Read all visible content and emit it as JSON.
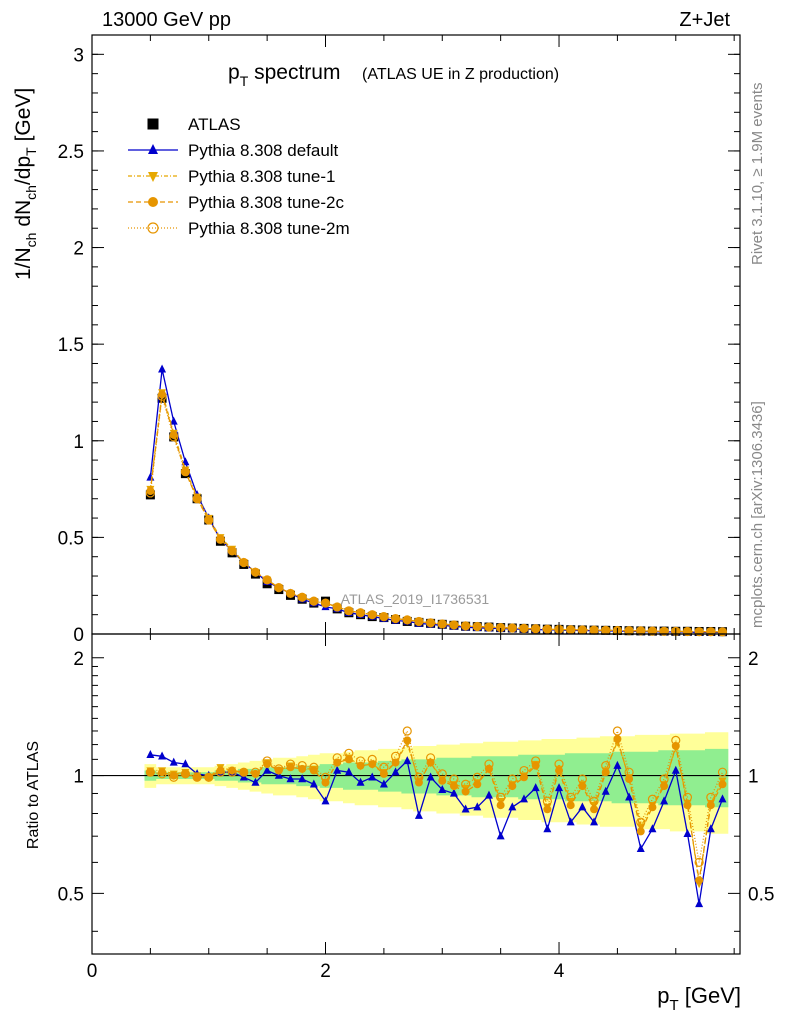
{
  "header": {
    "energy_label": "13000 GeV pp",
    "process_label": "Z+Jet"
  },
  "side_labels": {
    "rivet": "Rivet 3.1.10, ≥ 1.9M events",
    "source": "mcplots.cern.ch [arXiv:1306.3436]"
  },
  "chart_data": [
    {
      "type": "scatter",
      "title_main": "p",
      "title_sub": "T",
      "title_rest": " spectrum",
      "title_note": "(ATLAS UE in Z production)",
      "analysis_id": "ATLAS_2019_I1736531",
      "ylabel": "1/N_ch dN_ch/dp_T [GeV]",
      "ylabel_parts": {
        "a": "1/N",
        "a_sub": "ch",
        "b": " dN",
        "b_sub": "ch",
        "c": "/dp",
        "c_sub": "T",
        "d": " [GeV]"
      },
      "xlim": [
        0,
        5.55
      ],
      "ylim": [
        0,
        3.1
      ],
      "yticks": [
        0,
        0.5,
        1,
        1.5,
        2,
        2.5,
        3
      ],
      "ytick_labels": [
        "0",
        "0.5",
        "1",
        "1.5",
        "2",
        "2.5",
        "3"
      ],
      "x": [
        0.5,
        0.6,
        0.7,
        0.8,
        0.9,
        1.0,
        1.1,
        1.2,
        1.3,
        1.4,
        1.5,
        1.6,
        1.7,
        1.8,
        1.9,
        2.0,
        2.1,
        2.2,
        2.3,
        2.4,
        2.5,
        2.6,
        2.7,
        2.8,
        2.9,
        3.0,
        3.1,
        3.2,
        3.3,
        3.4,
        3.5,
        3.6,
        3.7,
        3.8,
        3.9,
        4.0,
        4.1,
        4.2,
        4.3,
        4.4,
        4.5,
        4.6,
        4.7,
        4.8,
        4.9,
        5.0,
        5.1,
        5.2,
        5.3,
        5.4
      ],
      "series": [
        {
          "name": "ATLAS",
          "marker": "square",
          "color": "#000000",
          "dash": "none",
          "values": [
            0.72,
            1.22,
            1.02,
            0.83,
            0.7,
            0.59,
            0.48,
            0.42,
            0.36,
            0.31,
            0.26,
            0.23,
            0.2,
            0.18,
            0.16,
            0.17,
            0.13,
            0.11,
            0.1,
            0.09,
            0.085,
            0.075,
            0.065,
            0.06,
            0.055,
            0.05,
            0.045,
            0.04,
            0.038,
            0.036,
            0.033,
            0.031,
            0.029,
            0.027,
            0.025,
            0.024,
            0.022,
            0.021,
            0.02,
            0.019,
            0.018,
            0.017,
            0.016,
            0.015,
            0.015,
            0.014,
            0.014,
            0.013,
            0.013,
            0.012
          ]
        },
        {
          "name": "Pythia 8.308 default",
          "marker": "triangle-up",
          "color": "#0000cc",
          "dash": "none",
          "values": [
            0.81,
            1.37,
            1.1,
            0.89,
            0.72,
            0.6,
            0.49,
            0.43,
            0.37,
            0.32,
            0.27,
            0.24,
            0.21,
            0.18,
            0.16,
            0.14,
            0.13,
            0.11,
            0.1,
            0.09,
            0.08,
            0.07,
            0.065,
            0.055,
            0.05,
            0.045,
            0.04,
            0.035,
            0.032,
            0.03,
            0.028,
            0.026,
            0.025,
            0.023,
            0.022,
            0.02,
            0.019,
            0.018,
            0.017,
            0.016,
            0.015,
            0.014,
            0.013,
            0.012,
            0.011,
            0.011,
            0.01,
            0.009,
            0.009,
            0.008
          ]
        },
        {
          "name": "Pythia 8.308 tune-1",
          "marker": "triangle-down",
          "color": "#e6a800",
          "dash": "4,2,1,2",
          "values": [
            0.75,
            1.25,
            1.04,
            0.85,
            0.71,
            0.6,
            0.5,
            0.44,
            0.37,
            0.32,
            0.28,
            0.24,
            0.21,
            0.19,
            0.17,
            0.16,
            0.14,
            0.12,
            0.11,
            0.1,
            0.09,
            0.08,
            0.072,
            0.065,
            0.058,
            0.052,
            0.047,
            0.042,
            0.039,
            0.036,
            0.033,
            0.031,
            0.029,
            0.027,
            0.025,
            0.024,
            0.022,
            0.021,
            0.02,
            0.019,
            0.018,
            0.017,
            0.016,
            0.015,
            0.014,
            0.014,
            0.013,
            0.012,
            0.012,
            0.011
          ]
        },
        {
          "name": "Pythia 8.308 tune-2c",
          "marker": "circle",
          "color": "#e69500",
          "dash": "5,3",
          "values": [
            0.74,
            1.24,
            1.03,
            0.84,
            0.7,
            0.59,
            0.49,
            0.43,
            0.37,
            0.32,
            0.28,
            0.24,
            0.21,
            0.19,
            0.17,
            0.16,
            0.14,
            0.12,
            0.11,
            0.1,
            0.09,
            0.08,
            0.072,
            0.064,
            0.057,
            0.051,
            0.046,
            0.041,
            0.038,
            0.035,
            0.032,
            0.03,
            0.028,
            0.026,
            0.025,
            0.023,
            0.022,
            0.021,
            0.02,
            0.019,
            0.018,
            0.017,
            0.016,
            0.015,
            0.014,
            0.013,
            0.013,
            0.012,
            0.011,
            0.011
          ]
        },
        {
          "name": "Pythia 8.308 tune-2m",
          "marker": "circle-open",
          "color": "#e69500",
          "dash": "1,2",
          "values": [
            0.73,
            1.23,
            1.02,
            0.84,
            0.7,
            0.59,
            0.49,
            0.43,
            0.37,
            0.32,
            0.28,
            0.24,
            0.21,
            0.19,
            0.17,
            0.16,
            0.14,
            0.12,
            0.11,
            0.1,
            0.09,
            0.08,
            0.073,
            0.065,
            0.058,
            0.052,
            0.047,
            0.042,
            0.039,
            0.036,
            0.033,
            0.031,
            0.029,
            0.027,
            0.025,
            0.024,
            0.022,
            0.021,
            0.02,
            0.019,
            0.018,
            0.017,
            0.016,
            0.015,
            0.014,
            0.014,
            0.013,
            0.012,
            0.012,
            0.011
          ]
        }
      ]
    },
    {
      "type": "scatter",
      "ylabel": "Ratio to ATLAS",
      "xlabel": "p_T [GeV]",
      "xlabel_parts": {
        "a": "p",
        "a_sub": "T",
        "b": " [GeV]"
      },
      "xlim": [
        0,
        5.55
      ],
      "ylim": [
        0.35,
        2.3
      ],
      "xticks": [
        0,
        2,
        4
      ],
      "xtick_labels": [
        "0",
        "2",
        "4"
      ],
      "yticks": [
        0.5,
        1,
        2
      ],
      "ytick_labels": [
        "0.5",
        "1",
        "2"
      ],
      "reference_line": 1,
      "x": [
        0.5,
        0.6,
        0.7,
        0.8,
        0.9,
        1.0,
        1.1,
        1.2,
        1.3,
        1.4,
        1.5,
        1.6,
        1.7,
        1.8,
        1.9,
        2.0,
        2.1,
        2.2,
        2.3,
        2.4,
        2.5,
        2.6,
        2.7,
        2.8,
        2.9,
        3.0,
        3.1,
        3.2,
        3.3,
        3.4,
        3.5,
        3.6,
        3.7,
        3.8,
        3.9,
        4.0,
        4.1,
        4.2,
        4.3,
        4.4,
        4.5,
        4.6,
        4.7,
        4.8,
        4.9,
        5.0,
        5.1,
        5.2,
        5.3,
        5.4
      ],
      "band_stat": {
        "color": "#90ee90",
        "lo": [
          0.97,
          0.98,
          0.98,
          0.98,
          0.98,
          0.98,
          0.97,
          0.97,
          0.96,
          0.96,
          0.95,
          0.95,
          0.95,
          0.94,
          0.94,
          0.93,
          0.93,
          0.92,
          0.92,
          0.92,
          0.91,
          0.91,
          0.9,
          0.9,
          0.9,
          0.89,
          0.89,
          0.89,
          0.88,
          0.88,
          0.88,
          0.88,
          0.87,
          0.87,
          0.87,
          0.87,
          0.86,
          0.86,
          0.86,
          0.86,
          0.85,
          0.85,
          0.85,
          0.85,
          0.84,
          0.84,
          0.84,
          0.84,
          0.83,
          0.83
        ],
        "hi": [
          1.03,
          1.02,
          1.02,
          1.02,
          1.02,
          1.02,
          1.03,
          1.03,
          1.04,
          1.04,
          1.05,
          1.05,
          1.05,
          1.06,
          1.06,
          1.07,
          1.07,
          1.08,
          1.08,
          1.08,
          1.09,
          1.09,
          1.1,
          1.1,
          1.1,
          1.11,
          1.11,
          1.11,
          1.12,
          1.12,
          1.12,
          1.12,
          1.13,
          1.13,
          1.13,
          1.13,
          1.14,
          1.14,
          1.14,
          1.14,
          1.15,
          1.15,
          1.15,
          1.15,
          1.16,
          1.16,
          1.16,
          1.16,
          1.17,
          1.17
        ]
      },
      "band_syst": {
        "color": "#ffff99",
        "lo": [
          0.93,
          0.95,
          0.95,
          0.95,
          0.95,
          0.95,
          0.94,
          0.93,
          0.92,
          0.91,
          0.9,
          0.89,
          0.89,
          0.88,
          0.87,
          0.86,
          0.86,
          0.85,
          0.84,
          0.84,
          0.83,
          0.83,
          0.82,
          0.81,
          0.81,
          0.8,
          0.8,
          0.79,
          0.79,
          0.78,
          0.78,
          0.78,
          0.77,
          0.77,
          0.76,
          0.76,
          0.76,
          0.75,
          0.75,
          0.74,
          0.74,
          0.74,
          0.73,
          0.73,
          0.73,
          0.72,
          0.72,
          0.72,
          0.71,
          0.71
        ],
        "hi": [
          1.07,
          1.05,
          1.05,
          1.05,
          1.05,
          1.05,
          1.06,
          1.07,
          1.08,
          1.09,
          1.1,
          1.11,
          1.11,
          1.12,
          1.13,
          1.14,
          1.14,
          1.15,
          1.16,
          1.16,
          1.17,
          1.17,
          1.18,
          1.19,
          1.19,
          1.2,
          1.2,
          1.21,
          1.21,
          1.22,
          1.22,
          1.22,
          1.23,
          1.23,
          1.24,
          1.24,
          1.24,
          1.25,
          1.25,
          1.26,
          1.26,
          1.26,
          1.27,
          1.27,
          1.27,
          1.28,
          1.28,
          1.28,
          1.29,
          1.29
        ]
      },
      "series": [
        {
          "name": "Pythia 8.308 default",
          "marker": "triangle-up",
          "color": "#0000cc",
          "dash": "none",
          "values": [
            1.13,
            1.12,
            1.08,
            1.07,
            1.01,
            1.0,
            1.02,
            1.02,
            0.99,
            0.96,
            1.03,
            1.0,
            0.98,
            0.98,
            0.95,
            0.86,
            1.03,
            1.02,
            0.96,
            0.99,
            0.95,
            1.02,
            1.09,
            0.79,
            0.99,
            0.92,
            0.9,
            0.82,
            0.83,
            0.89,
            0.7,
            0.83,
            0.87,
            0.93,
            0.73,
            0.93,
            0.76,
            0.83,
            0.76,
            0.91,
            1.06,
            0.88,
            0.65,
            0.73,
            0.86,
            1.03,
            0.71,
            0.47,
            0.73,
            0.87
          ]
        },
        {
          "name": "Pythia 8.308 tune-1",
          "marker": "triangle-down",
          "color": "#e6a800",
          "dash": "4,2,1,2",
          "values": [
            1.03,
            1.03,
            1.01,
            1.02,
            1.0,
            0.99,
            1.05,
            1.03,
            1.02,
            1.01,
            1.08,
            1.03,
            1.06,
            1.04,
            1.04,
            0.96,
            1.08,
            1.11,
            1.06,
            1.07,
            1.02,
            1.08,
            1.21,
            0.97,
            1.08,
            0.98,
            0.95,
            0.93,
            0.96,
            1.04,
            0.86,
            0.95,
            1.0,
            1.07,
            0.83,
            1.04,
            0.86,
            0.95,
            0.84,
            1.03,
            1.22,
            0.99,
            0.74,
            0.84,
            0.95,
            1.18,
            0.85,
            0.53,
            0.85,
            0.97
          ]
        },
        {
          "name": "Pythia 8.308 tune-2c",
          "marker": "circle",
          "color": "#e69500",
          "dash": "5,3",
          "values": [
            1.02,
            1.02,
            1.0,
            1.01,
            0.99,
            0.99,
            1.03,
            1.03,
            1.02,
            1.01,
            1.07,
            1.03,
            1.05,
            1.04,
            1.03,
            0.96,
            1.08,
            1.1,
            1.06,
            1.07,
            1.01,
            1.08,
            1.23,
            0.96,
            1.08,
            0.97,
            0.94,
            0.91,
            0.95,
            1.04,
            0.84,
            0.94,
            0.99,
            1.06,
            0.82,
            1.03,
            0.84,
            0.94,
            0.82,
            1.02,
            1.24,
            0.98,
            0.72,
            0.83,
            0.94,
            1.19,
            0.84,
            0.54,
            0.84,
            0.95
          ]
        },
        {
          "name": "Pythia 8.308 tune-2m",
          "marker": "circle-open",
          "color": "#e69500",
          "dash": "1,2",
          "values": [
            1.02,
            1.01,
            0.99,
            1.01,
            0.99,
            0.99,
            1.02,
            1.02,
            1.02,
            1.02,
            1.09,
            1.04,
            1.07,
            1.06,
            1.05,
            0.99,
            1.11,
            1.14,
            1.09,
            1.1,
            1.05,
            1.12,
            1.3,
            0.99,
            1.11,
            1.01,
            0.98,
            0.95,
            0.99,
            1.07,
            0.88,
            0.98,
            1.03,
            1.09,
            0.86,
            1.07,
            0.88,
            0.98,
            0.86,
            1.06,
            1.3,
            1.02,
            0.76,
            0.87,
            0.98,
            1.23,
            0.88,
            0.6,
            0.88,
            1.02
          ]
        }
      ]
    }
  ]
}
